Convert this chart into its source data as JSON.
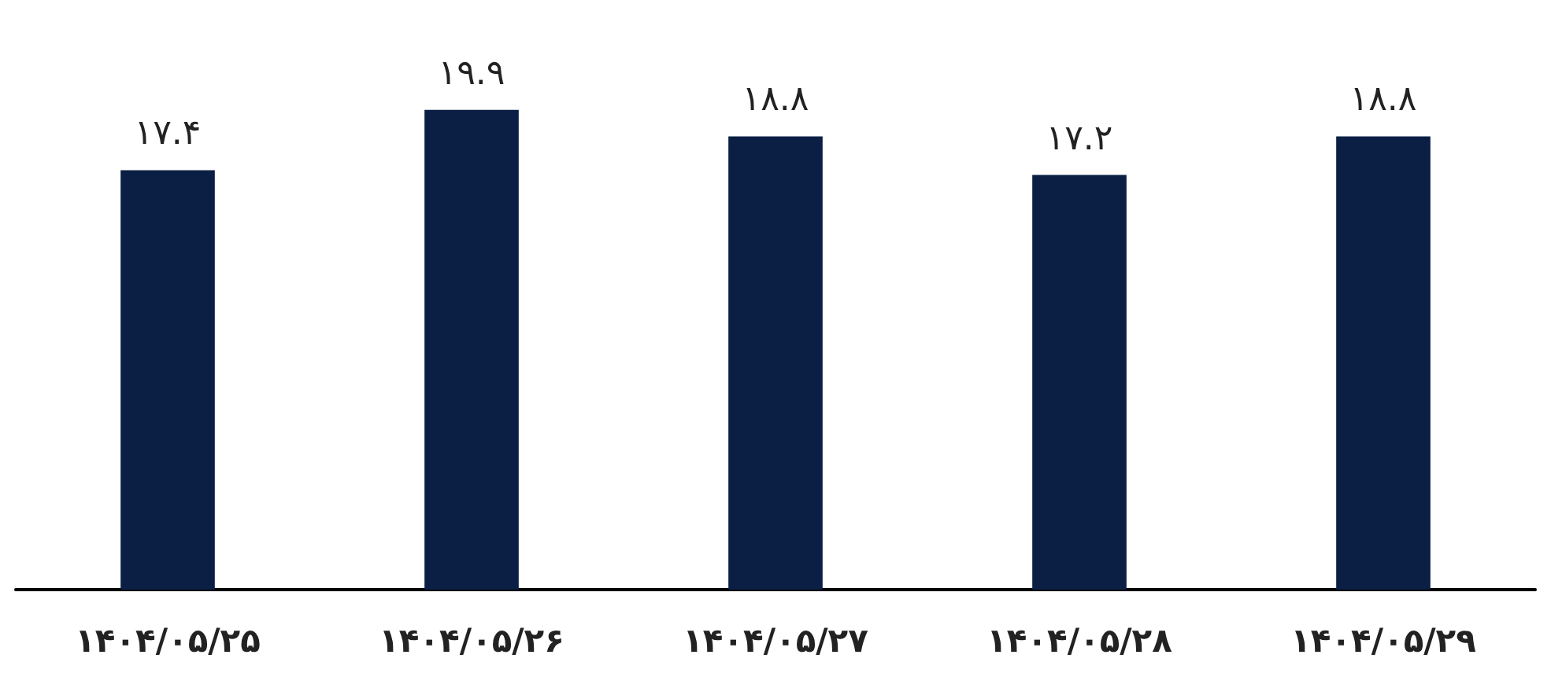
{
  "chart_data": {
    "type": "bar",
    "categories": [
      "۱۴۰۴/۰۵/۲۵",
      "۱۴۰۴/۰۵/۲۶",
      "۱۴۰۴/۰۵/۲۷",
      "۱۴۰۴/۰۵/۲۸",
      "۱۴۰۴/۰۵/۲۹"
    ],
    "values": [
      17.4,
      19.9,
      18.8,
      17.2,
      18.8
    ],
    "value_labels": [
      "۱۷.۴",
      "۱۹.۹",
      "۱۸.۸",
      "۱۷.۲",
      "۱۸.۸"
    ],
    "color": "#0b1f44",
    "tick_labels": "x"
  }
}
